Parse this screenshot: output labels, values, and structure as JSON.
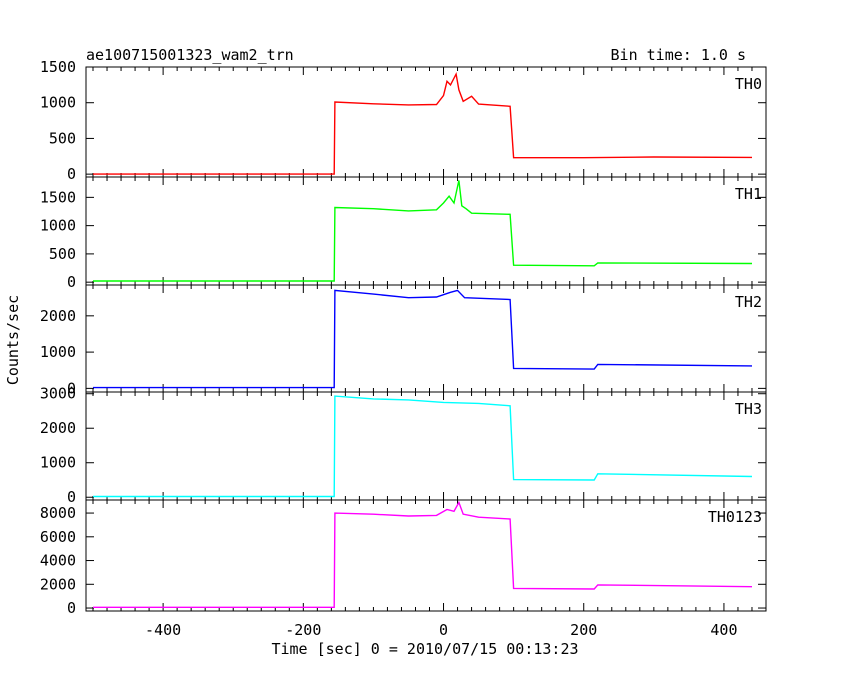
{
  "header": {
    "title": "ae100715001323_wam2_trn",
    "bin_time": "Bin time: 1.0 s"
  },
  "axes": {
    "ylabel": "Counts/sec",
    "xlabel": "Time [sec] 0 = 2010/07/15 00:13:23"
  },
  "chart_data": {
    "type": "line",
    "x_range": [
      -510,
      460
    ],
    "x_ticks": [
      -400,
      -200,
      0,
      200,
      400
    ],
    "grid": false,
    "panels": [
      {
        "name": "TH0",
        "color": "#ff0000",
        "ylim": [
          -40,
          1500
        ],
        "y_ticks": [
          0,
          500,
          1000,
          1500
        ],
        "series": [
          {
            "x": -500,
            "y": 0
          },
          {
            "x": -156,
            "y": 0
          },
          {
            "x": -155,
            "y": 1010
          },
          {
            "x": -100,
            "y": 985
          },
          {
            "x": -50,
            "y": 970
          },
          {
            "x": -10,
            "y": 975
          },
          {
            "x": 0,
            "y": 1100
          },
          {
            "x": 5,
            "y": 1300
          },
          {
            "x": 10,
            "y": 1250
          },
          {
            "x": 18,
            "y": 1400
          },
          {
            "x": 22,
            "y": 1180
          },
          {
            "x": 28,
            "y": 1020
          },
          {
            "x": 40,
            "y": 1090
          },
          {
            "x": 50,
            "y": 980
          },
          {
            "x": 95,
            "y": 950
          },
          {
            "x": 100,
            "y": 230
          },
          {
            "x": 200,
            "y": 230
          },
          {
            "x": 300,
            "y": 240
          },
          {
            "x": 440,
            "y": 235
          }
        ]
      },
      {
        "name": "TH1",
        "color": "#00ff00",
        "ylim": [
          -50,
          1860
        ],
        "y_ticks": [
          0,
          500,
          1000,
          1500
        ],
        "series": [
          {
            "x": -500,
            "y": 20
          },
          {
            "x": -156,
            "y": 20
          },
          {
            "x": -155,
            "y": 1320
          },
          {
            "x": -100,
            "y": 1300
          },
          {
            "x": -50,
            "y": 1260
          },
          {
            "x": -10,
            "y": 1280
          },
          {
            "x": 0,
            "y": 1400
          },
          {
            "x": 8,
            "y": 1520
          },
          {
            "x": 15,
            "y": 1400
          },
          {
            "x": 22,
            "y": 1800
          },
          {
            "x": 26,
            "y": 1350
          },
          {
            "x": 32,
            "y": 1300
          },
          {
            "x": 40,
            "y": 1220
          },
          {
            "x": 95,
            "y": 1200
          },
          {
            "x": 100,
            "y": 300
          },
          {
            "x": 215,
            "y": 290
          },
          {
            "x": 220,
            "y": 340
          },
          {
            "x": 440,
            "y": 330
          }
        ]
      },
      {
        "name": "TH2",
        "color": "#0000ff",
        "ylim": [
          -100,
          2850
        ],
        "y_ticks": [
          0,
          1000,
          2000
        ],
        "series": [
          {
            "x": -500,
            "y": 20
          },
          {
            "x": -156,
            "y": 20
          },
          {
            "x": -155,
            "y": 2700
          },
          {
            "x": -100,
            "y": 2600
          },
          {
            "x": -50,
            "y": 2500
          },
          {
            "x": -10,
            "y": 2520
          },
          {
            "x": 10,
            "y": 2650
          },
          {
            "x": 20,
            "y": 2700
          },
          {
            "x": 30,
            "y": 2500
          },
          {
            "x": 95,
            "y": 2450
          },
          {
            "x": 100,
            "y": 550
          },
          {
            "x": 215,
            "y": 530
          },
          {
            "x": 220,
            "y": 660
          },
          {
            "x": 440,
            "y": 620
          }
        ]
      },
      {
        "name": "TH3",
        "color": "#00ffff",
        "ylim": [
          -80,
          3050
        ],
        "y_ticks": [
          0,
          1000,
          2000,
          3000
        ],
        "series": [
          {
            "x": -500,
            "y": 20
          },
          {
            "x": -156,
            "y": 20
          },
          {
            "x": -155,
            "y": 2930
          },
          {
            "x": -100,
            "y": 2850
          },
          {
            "x": -50,
            "y": 2820
          },
          {
            "x": 0,
            "y": 2750
          },
          {
            "x": 50,
            "y": 2720
          },
          {
            "x": 95,
            "y": 2650
          },
          {
            "x": 100,
            "y": 510
          },
          {
            "x": 215,
            "y": 500
          },
          {
            "x": 220,
            "y": 680
          },
          {
            "x": 440,
            "y": 600
          }
        ]
      },
      {
        "name": "TH0123",
        "color": "#ff00ff",
        "ylim": [
          -250,
          9100
        ],
        "y_ticks": [
          0,
          2000,
          4000,
          6000,
          8000
        ],
        "series": [
          {
            "x": -500,
            "y": 60
          },
          {
            "x": -156,
            "y": 60
          },
          {
            "x": -155,
            "y": 8000
          },
          {
            "x": -100,
            "y": 7900
          },
          {
            "x": -50,
            "y": 7750
          },
          {
            "x": -10,
            "y": 7800
          },
          {
            "x": 5,
            "y": 8300
          },
          {
            "x": 15,
            "y": 8150
          },
          {
            "x": 22,
            "y": 8900
          },
          {
            "x": 28,
            "y": 7900
          },
          {
            "x": 50,
            "y": 7650
          },
          {
            "x": 95,
            "y": 7500
          },
          {
            "x": 100,
            "y": 1650
          },
          {
            "x": 215,
            "y": 1600
          },
          {
            "x": 220,
            "y": 1950
          },
          {
            "x": 440,
            "y": 1800
          }
        ]
      }
    ]
  }
}
